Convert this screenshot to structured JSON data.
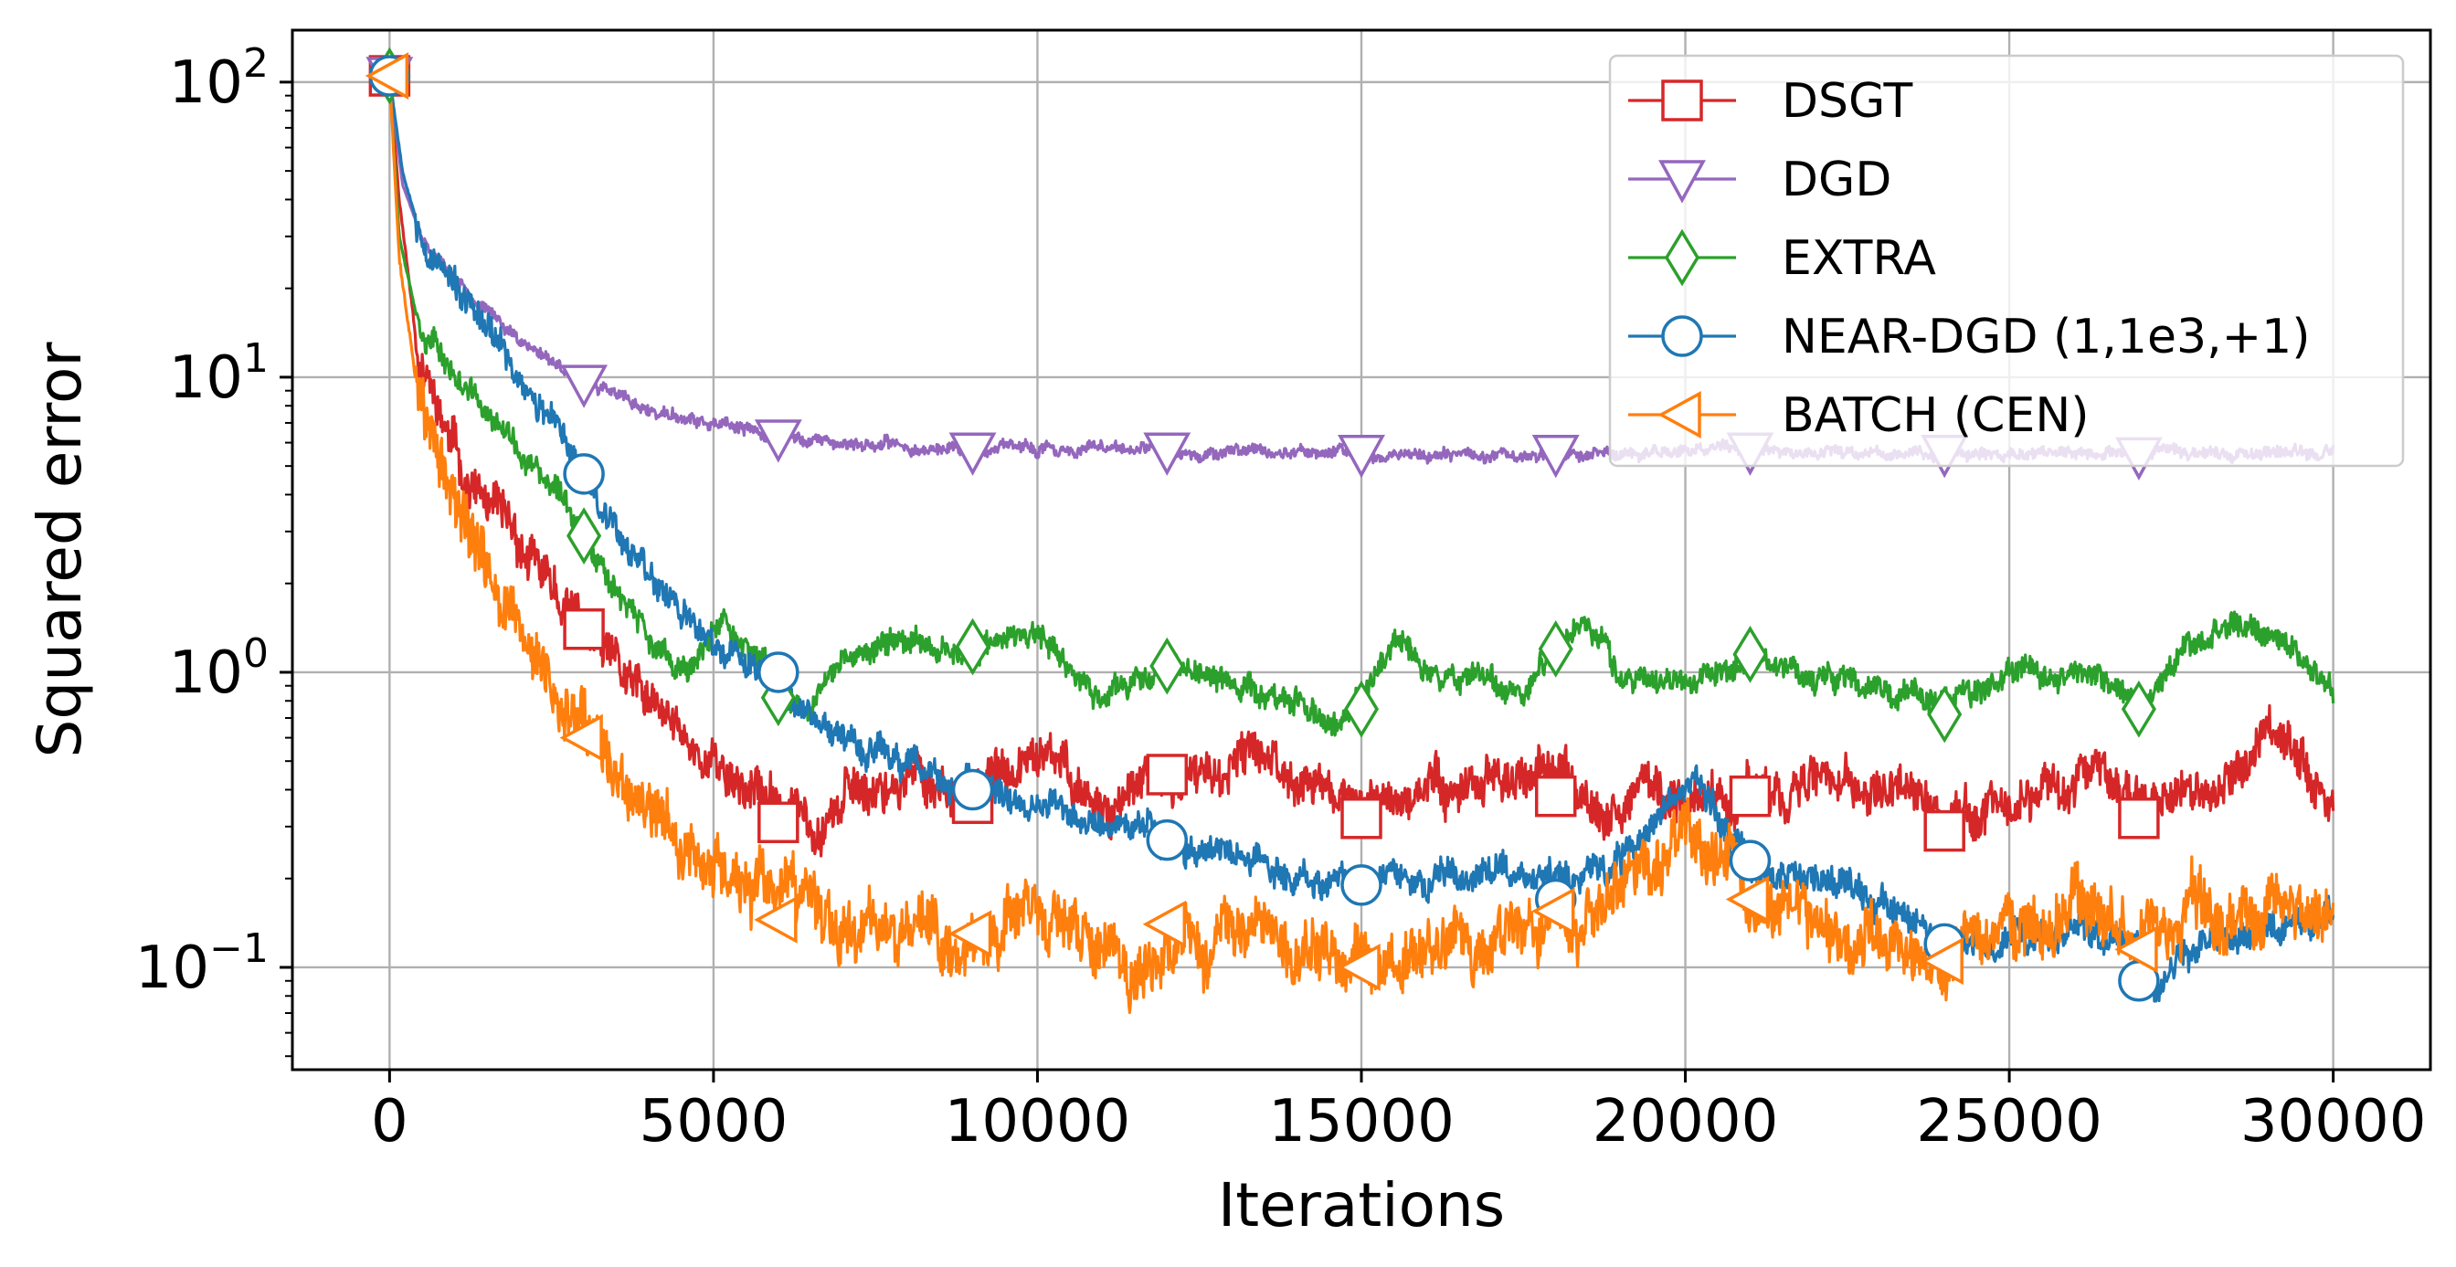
{
  "chart_data": {
    "type": "line",
    "title": "",
    "xlabel": "Iterations",
    "ylabel": "Squared error",
    "xlim": [
      -1500,
      31500
    ],
    "ylim": [
      0.045,
      150
    ],
    "yscale": "log",
    "grid": true,
    "legend_position": "top-right",
    "x_ticks": [
      {
        "value": 0,
        "label": "0"
      },
      {
        "value": 5000,
        "label": "5000"
      },
      {
        "value": 10000,
        "label": "10000"
      },
      {
        "value": 15000,
        "label": "15000"
      },
      {
        "value": 20000,
        "label": "20000"
      },
      {
        "value": 25000,
        "label": "25000"
      },
      {
        "value": 30000,
        "label": "30000"
      }
    ],
    "y_ticks": [
      {
        "value": 100,
        "base": "10",
        "exp": "2"
      },
      {
        "value": 10,
        "base": "10",
        "exp": "1"
      },
      {
        "value": 1,
        "base": "10",
        "exp": "0"
      },
      {
        "value": 0.1,
        "base": "10",
        "exp": "−1"
      }
    ],
    "series": [
      {
        "name": "DSGT",
        "color": "#d62728",
        "marker": "square",
        "noise": 0.22,
        "seed": 11,
        "x": [
          0,
          150,
          400,
          800,
          1200,
          1500,
          2000,
          2500,
          3000,
          3500,
          4000,
          4500,
          5000,
          5500,
          6000,
          6500,
          7000,
          8000,
          9000,
          10000,
          10500,
          11000,
          11500,
          12000,
          13000,
          13500,
          14000,
          15000,
          16000,
          17000,
          18000,
          19000,
          20000,
          20500,
          21000,
          22000,
          23000,
          24000,
          25000,
          26000,
          27000,
          28000,
          28600,
          29000,
          30000
        ],
        "y": [
          105,
          40,
          14,
          7,
          4.5,
          3.6,
          2.6,
          1.9,
          1.4,
          1.0,
          0.75,
          0.6,
          0.5,
          0.42,
          0.35,
          0.32,
          0.38,
          0.45,
          0.38,
          0.5,
          0.45,
          0.35,
          0.4,
          0.42,
          0.45,
          0.55,
          0.45,
          0.35,
          0.4,
          0.45,
          0.42,
          0.38,
          0.4,
          0.35,
          0.4,
          0.45,
          0.38,
          0.32,
          0.38,
          0.45,
          0.4,
          0.35,
          0.45,
          0.7,
          0.42
        ],
        "markers": [
          {
            "x": 0,
            "y": 105
          },
          {
            "x": 3000,
            "y": 1.4
          },
          {
            "x": 6000,
            "y": 0.31
          },
          {
            "x": 9000,
            "y": 0.36
          },
          {
            "x": 12000,
            "y": 0.45
          },
          {
            "x": 15000,
            "y": 0.32
          },
          {
            "x": 18000,
            "y": 0.38
          },
          {
            "x": 21000,
            "y": 0.38
          },
          {
            "x": 24000,
            "y": 0.29
          },
          {
            "x": 27000,
            "y": 0.32
          }
        ]
      },
      {
        "name": "DGD",
        "color": "#9467bd",
        "marker": "triangle-down",
        "noise": 0.06,
        "seed": 23,
        "x": [
          0,
          200,
          500,
          1000,
          1500,
          2000,
          2500,
          3000,
          3500,
          4000,
          5000,
          6000,
          7000,
          8000,
          9000,
          10000,
          12000,
          14000,
          16000,
          18000,
          20000,
          22000,
          24000,
          26000,
          28000,
          30000
        ],
        "y": [
          105,
          45,
          30,
          22,
          17,
          13.5,
          11.5,
          9.8,
          8.6,
          7.7,
          6.8,
          6.3,
          6.0,
          5.8,
          5.7,
          5.7,
          5.6,
          5.6,
          5.5,
          5.5,
          5.6,
          5.6,
          5.5,
          5.5,
          5.6,
          5.5
        ],
        "markers": [
          {
            "x": 0,
            "y": 105
          },
          {
            "x": 3000,
            "y": 9.5
          },
          {
            "x": 6000,
            "y": 6.2
          },
          {
            "x": 9000,
            "y": 5.6
          },
          {
            "x": 12000,
            "y": 5.6
          },
          {
            "x": 15000,
            "y": 5.5
          },
          {
            "x": 18000,
            "y": 5.5
          },
          {
            "x": 21000,
            "y": 5.6
          },
          {
            "x": 24000,
            "y": 5.5
          },
          {
            "x": 27000,
            "y": 5.4
          }
        ]
      },
      {
        "name": "EXTRA",
        "color": "#2ca02c",
        "marker": "diamond",
        "noise": 0.13,
        "seed": 37,
        "x": [
          0,
          150,
          400,
          800,
          1200,
          1600,
          2000,
          2500,
          3000,
          3500,
          4000,
          4400,
          4800,
          5200,
          5800,
          6200,
          6500,
          7000,
          8000,
          9000,
          10000,
          10500,
          11000,
          12000,
          13000,
          14000,
          14600,
          15000,
          15500,
          16000,
          17000,
          17500,
          18000,
          18500,
          19000,
          20000,
          21000,
          22000,
          23000,
          24000,
          25000,
          26000,
          27000,
          28000,
          28500,
          29000,
          29500,
          30000
        ],
        "y": [
          105,
          30,
          17,
          12,
          9,
          7,
          5.5,
          4.2,
          3.0,
          2.0,
          1.3,
          1.0,
          1.1,
          1.5,
          1.0,
          0.8,
          0.8,
          1.1,
          1.3,
          1.2,
          1.3,
          1.0,
          0.8,
          1.1,
          0.9,
          0.8,
          0.65,
          0.8,
          1.3,
          1.0,
          1.0,
          0.85,
          1.3,
          1.4,
          1.0,
          0.9,
          1.1,
          1.0,
          0.9,
          0.8,
          1.0,
          0.95,
          0.8,
          1.3,
          1.5,
          1.3,
          1.1,
          0.85
        ],
        "markers": [
          {
            "x": 0,
            "y": 105
          },
          {
            "x": 3000,
            "y": 2.9
          },
          {
            "x": 6000,
            "y": 0.82
          },
          {
            "x": 9000,
            "y": 1.22
          },
          {
            "x": 12000,
            "y": 1.05
          },
          {
            "x": 15000,
            "y": 0.75
          },
          {
            "x": 18000,
            "y": 1.2
          },
          {
            "x": 21000,
            "y": 1.15
          },
          {
            "x": 24000,
            "y": 0.72
          },
          {
            "x": 27000,
            "y": 0.75
          }
        ]
      },
      {
        "name": "NEAR-DGD (1,1e3,+1)",
        "color": "#1f77b4",
        "marker": "circle",
        "noise": 0.15,
        "seed": 53,
        "x": [
          0,
          200,
          500,
          1000,
          1500,
          2000,
          2500,
          3000,
          3500,
          4000,
          4500,
          5000,
          5500,
          6000,
          6500,
          7000,
          7500,
          8000,
          8500,
          9000,
          10000,
          11000,
          12000,
          13000,
          14000,
          15000,
          16000,
          17000,
          18000,
          19000,
          19500,
          20000,
          20200,
          20600,
          21000,
          22000,
          23000,
          24000,
          25000,
          26000,
          27000,
          27300,
          28000,
          29000,
          30000
        ],
        "y": [
          105,
          50,
          30,
          20,
          14,
          10,
          7,
          4.7,
          3.2,
          2.2,
          1.6,
          1.2,
          1.05,
          1.0,
          0.75,
          0.6,
          0.55,
          0.48,
          0.42,
          0.4,
          0.35,
          0.3,
          0.27,
          0.24,
          0.21,
          0.19,
          0.2,
          0.22,
          0.2,
          0.22,
          0.32,
          0.42,
          0.45,
          0.3,
          0.23,
          0.19,
          0.16,
          0.12,
          0.13,
          0.14,
          0.12,
          0.09,
          0.12,
          0.14,
          0.14
        ],
        "markers": [
          {
            "x": 0,
            "y": 105
          },
          {
            "x": 3000,
            "y": 4.7
          },
          {
            "x": 6000,
            "y": 1.0
          },
          {
            "x": 9000,
            "y": 0.4
          },
          {
            "x": 12000,
            "y": 0.27
          },
          {
            "x": 15000,
            "y": 0.19
          },
          {
            "x": 18000,
            "y": 0.17
          },
          {
            "x": 21000,
            "y": 0.23
          },
          {
            "x": 24000,
            "y": 0.12
          },
          {
            "x": 27000,
            "y": 0.09
          }
        ]
      },
      {
        "name": "BATCH (CEN)",
        "color": "#ff7f0e",
        "marker": "triangle-left",
        "noise": 0.3,
        "seed": 71,
        "x": [
          0,
          150,
          400,
          800,
          1200,
          1600,
          2000,
          2500,
          3000,
          3500,
          4000,
          5000,
          6000,
          7000,
          8000,
          9000,
          10000,
          11000,
          11500,
          12000,
          13000,
          14000,
          15000,
          16000,
          17000,
          18000,
          19000,
          20000,
          20500,
          21000,
          22000,
          23000,
          24000,
          25000,
          26000,
          27000,
          28000,
          29000,
          30000
        ],
        "y": [
          105,
          25,
          10,
          5,
          3,
          2,
          1.3,
          0.85,
          0.6,
          0.42,
          0.3,
          0.22,
          0.16,
          0.15,
          0.14,
          0.13,
          0.14,
          0.11,
          0.09,
          0.12,
          0.13,
          0.11,
          0.1,
          0.11,
          0.13,
          0.15,
          0.18,
          0.32,
          0.24,
          0.17,
          0.15,
          0.13,
          0.11,
          0.13,
          0.15,
          0.12,
          0.14,
          0.15,
          0.15
        ],
        "markers": [
          {
            "x": 0,
            "y": 105
          },
          {
            "x": 3000,
            "y": 0.6
          },
          {
            "x": 6000,
            "y": 0.145
          },
          {
            "x": 9000,
            "y": 0.13
          },
          {
            "x": 12000,
            "y": 0.14
          },
          {
            "x": 15000,
            "y": 0.1
          },
          {
            "x": 18000,
            "y": 0.155
          },
          {
            "x": 21000,
            "y": 0.17
          },
          {
            "x": 24000,
            "y": 0.105
          },
          {
            "x": 27000,
            "y": 0.115
          }
        ]
      }
    ]
  }
}
